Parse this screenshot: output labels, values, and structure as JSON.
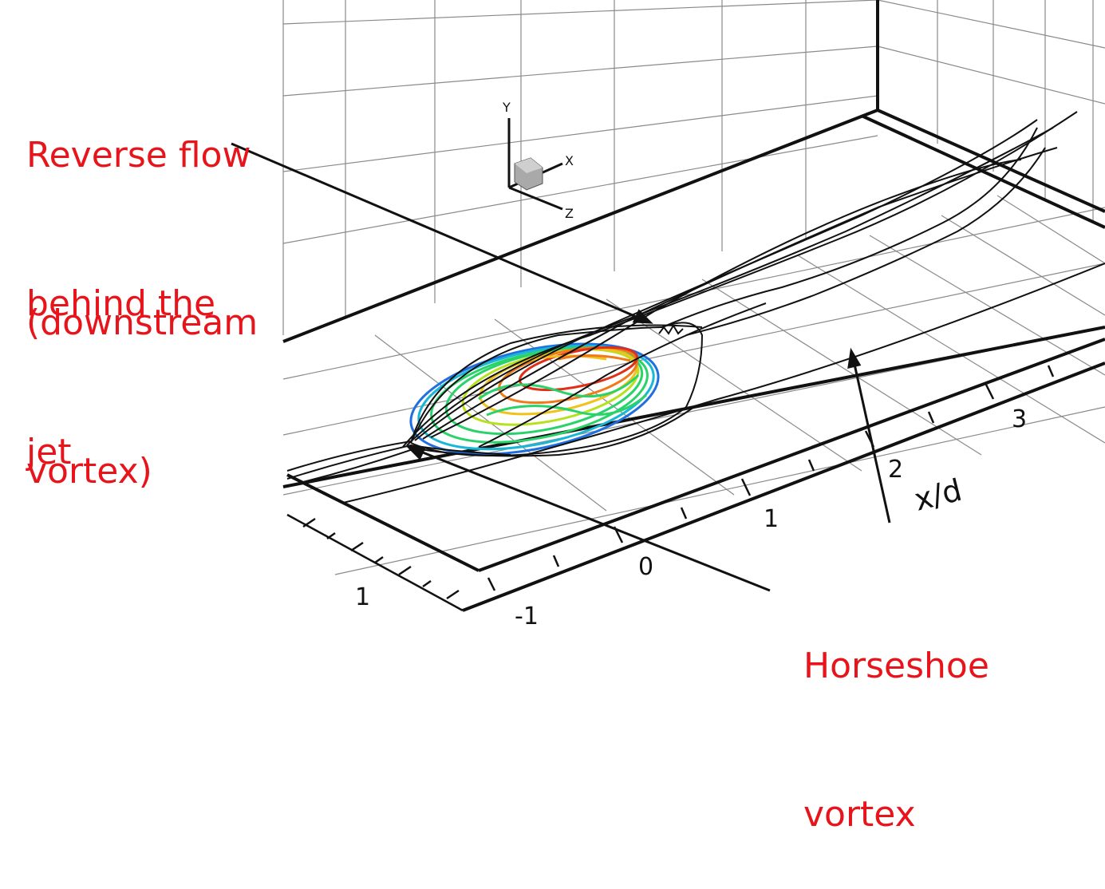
{
  "annotations": {
    "reverse_flow": [
      "Reverse flow",
      "behind the",
      "jet"
    ],
    "downstream_vortex": [
      "(downstream",
      "vortex)"
    ],
    "horseshoe": [
      "Horseshoe",
      "vortex"
    ]
  },
  "axes": {
    "x_title": "x/d",
    "x_ticks": [
      "0",
      "1",
      "2",
      "3"
    ],
    "z_ticks": [
      "1",
      "-1"
    ]
  },
  "triad": {
    "y": "Y",
    "x": "X",
    "z": "Z"
  },
  "colors": {
    "annotation": "#e8141b",
    "grid": "#8a8a8a",
    "lines": "#111111",
    "contour_palette": [
      "#1f6fe0",
      "#19b7d6",
      "#29d36a",
      "#b7e01f",
      "#f0c21a",
      "#f07a1a",
      "#e0301a"
    ]
  }
}
